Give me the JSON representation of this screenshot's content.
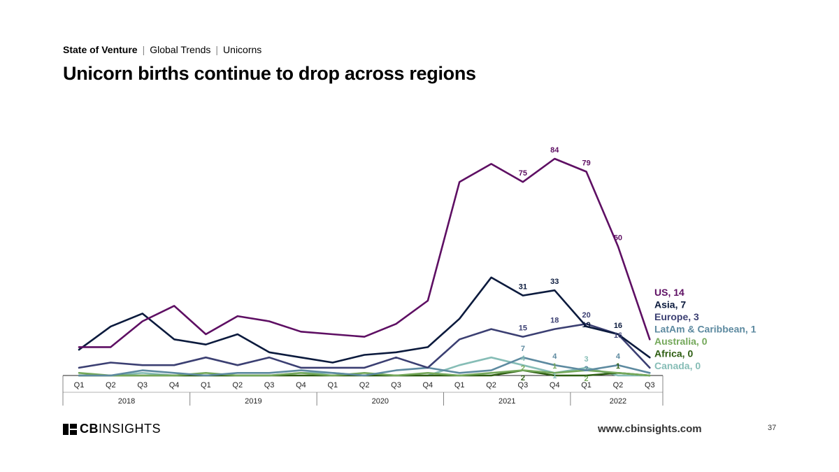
{
  "breadcrumb": {
    "section": "State of Venture",
    "separator": "|",
    "topic": "Global Trends",
    "subtopic": "Unicorns"
  },
  "title": "Unicorn births continue to drop across regions",
  "chart_data": {
    "type": "line",
    "title": "Unicorn births continue to drop across regions",
    "quarters": [
      "Q1",
      "Q2",
      "Q3",
      "Q4",
      "Q1",
      "Q2",
      "Q3",
      "Q4",
      "Q1",
      "Q2",
      "Q3",
      "Q4",
      "Q1",
      "Q2",
      "Q3",
      "Q4",
      "Q1",
      "Q2",
      "Q3"
    ],
    "years": [
      {
        "label": "2018",
        "count": 4
      },
      {
        "label": "2019",
        "count": 4
      },
      {
        "label": "2020",
        "count": 4
      },
      {
        "label": "2021",
        "count": 4
      },
      {
        "label": "2022",
        "count": 3
      }
    ],
    "ylim": [
      0,
      84
    ],
    "series": [
      {
        "name": "US",
        "legend": "US, 14",
        "color": "#5e0f63",
        "values": [
          11,
          11,
          21,
          27,
          16,
          23,
          21,
          17,
          16,
          15,
          20,
          29,
          75,
          82,
          75,
          84,
          79,
          50,
          14
        ],
        "labels": [
          null,
          null,
          null,
          null,
          null,
          null,
          null,
          null,
          null,
          null,
          null,
          null,
          null,
          null,
          "75",
          "84",
          "79",
          "50",
          null
        ]
      },
      {
        "name": "Asia",
        "legend": "Asia, 7",
        "color": "#0b1a3d",
        "values": [
          10,
          19,
          24,
          14,
          12,
          16,
          9,
          7,
          5,
          8,
          9,
          11,
          22,
          38,
          31,
          33,
          19,
          16,
          7
        ],
        "labels": [
          null,
          null,
          null,
          null,
          null,
          null,
          null,
          null,
          null,
          null,
          null,
          null,
          null,
          null,
          "31",
          "33",
          "19",
          "16",
          null
        ]
      },
      {
        "name": "Europe",
        "legend": "Europe, 3",
        "color": "#3b3f72",
        "values": [
          3,
          5,
          4,
          4,
          7,
          4,
          7,
          3,
          3,
          3,
          7,
          3,
          14,
          18,
          15,
          18,
          20,
          16,
          3
        ],
        "labels": [
          null,
          null,
          null,
          null,
          null,
          null,
          null,
          null,
          null,
          null,
          null,
          null,
          null,
          null,
          "15",
          "18",
          "20",
          "16",
          null
        ]
      },
      {
        "name": "LatAm & Caribbean",
        "legend": "LatAm & Caribbean, 1",
        "color": "#5d8aa0",
        "values": [
          0,
          0,
          2,
          1,
          0,
          1,
          1,
          2,
          1,
          0,
          2,
          3,
          1,
          2,
          7,
          4,
          2,
          4,
          1
        ],
        "labels": [
          null,
          null,
          null,
          null,
          null,
          null,
          null,
          null,
          null,
          null,
          null,
          null,
          null,
          null,
          "7",
          "4",
          "2",
          "4",
          null
        ]
      },
      {
        "name": "Australia",
        "legend": "Australia, 0",
        "color": "#74a85a",
        "values": [
          1,
          0,
          0,
          0,
          1,
          0,
          0,
          1,
          0,
          1,
          0,
          1,
          0,
          1,
          2,
          1,
          2,
          1,
          0
        ],
        "labels": [
          null,
          null,
          null,
          null,
          null,
          null,
          null,
          null,
          null,
          null,
          null,
          null,
          null,
          null,
          "2",
          "1",
          "2",
          null,
          null
        ]
      },
      {
        "name": "Africa",
        "legend": "Africa, 0",
        "color": "#2e5e12",
        "values": [
          0,
          0,
          0,
          0,
          0,
          0,
          0,
          0,
          0,
          0,
          0,
          0,
          0,
          0,
          2,
          0,
          0,
          1,
          0
        ],
        "labels": [
          null,
          null,
          null,
          null,
          null,
          null,
          null,
          null,
          null,
          null,
          null,
          null,
          null,
          null,
          "2",
          null,
          null,
          "1",
          null
        ]
      },
      {
        "name": "Canada",
        "legend": "Canada, 0",
        "color": "#86bdb6",
        "values": [
          0,
          0,
          1,
          0,
          0,
          0,
          0,
          1,
          1,
          0,
          0,
          0,
          4,
          7,
          4,
          1,
          3,
          0,
          0
        ],
        "labels": [
          null,
          null,
          null,
          null,
          null,
          null,
          null,
          null,
          null,
          null,
          null,
          null,
          null,
          null,
          "4",
          "1",
          "3",
          null,
          null
        ]
      }
    ]
  },
  "footer": {
    "logo_strong": "CB",
    "logo_light": "INSIGHTS",
    "url": "www.cbinsights.com",
    "page_number": "37"
  }
}
